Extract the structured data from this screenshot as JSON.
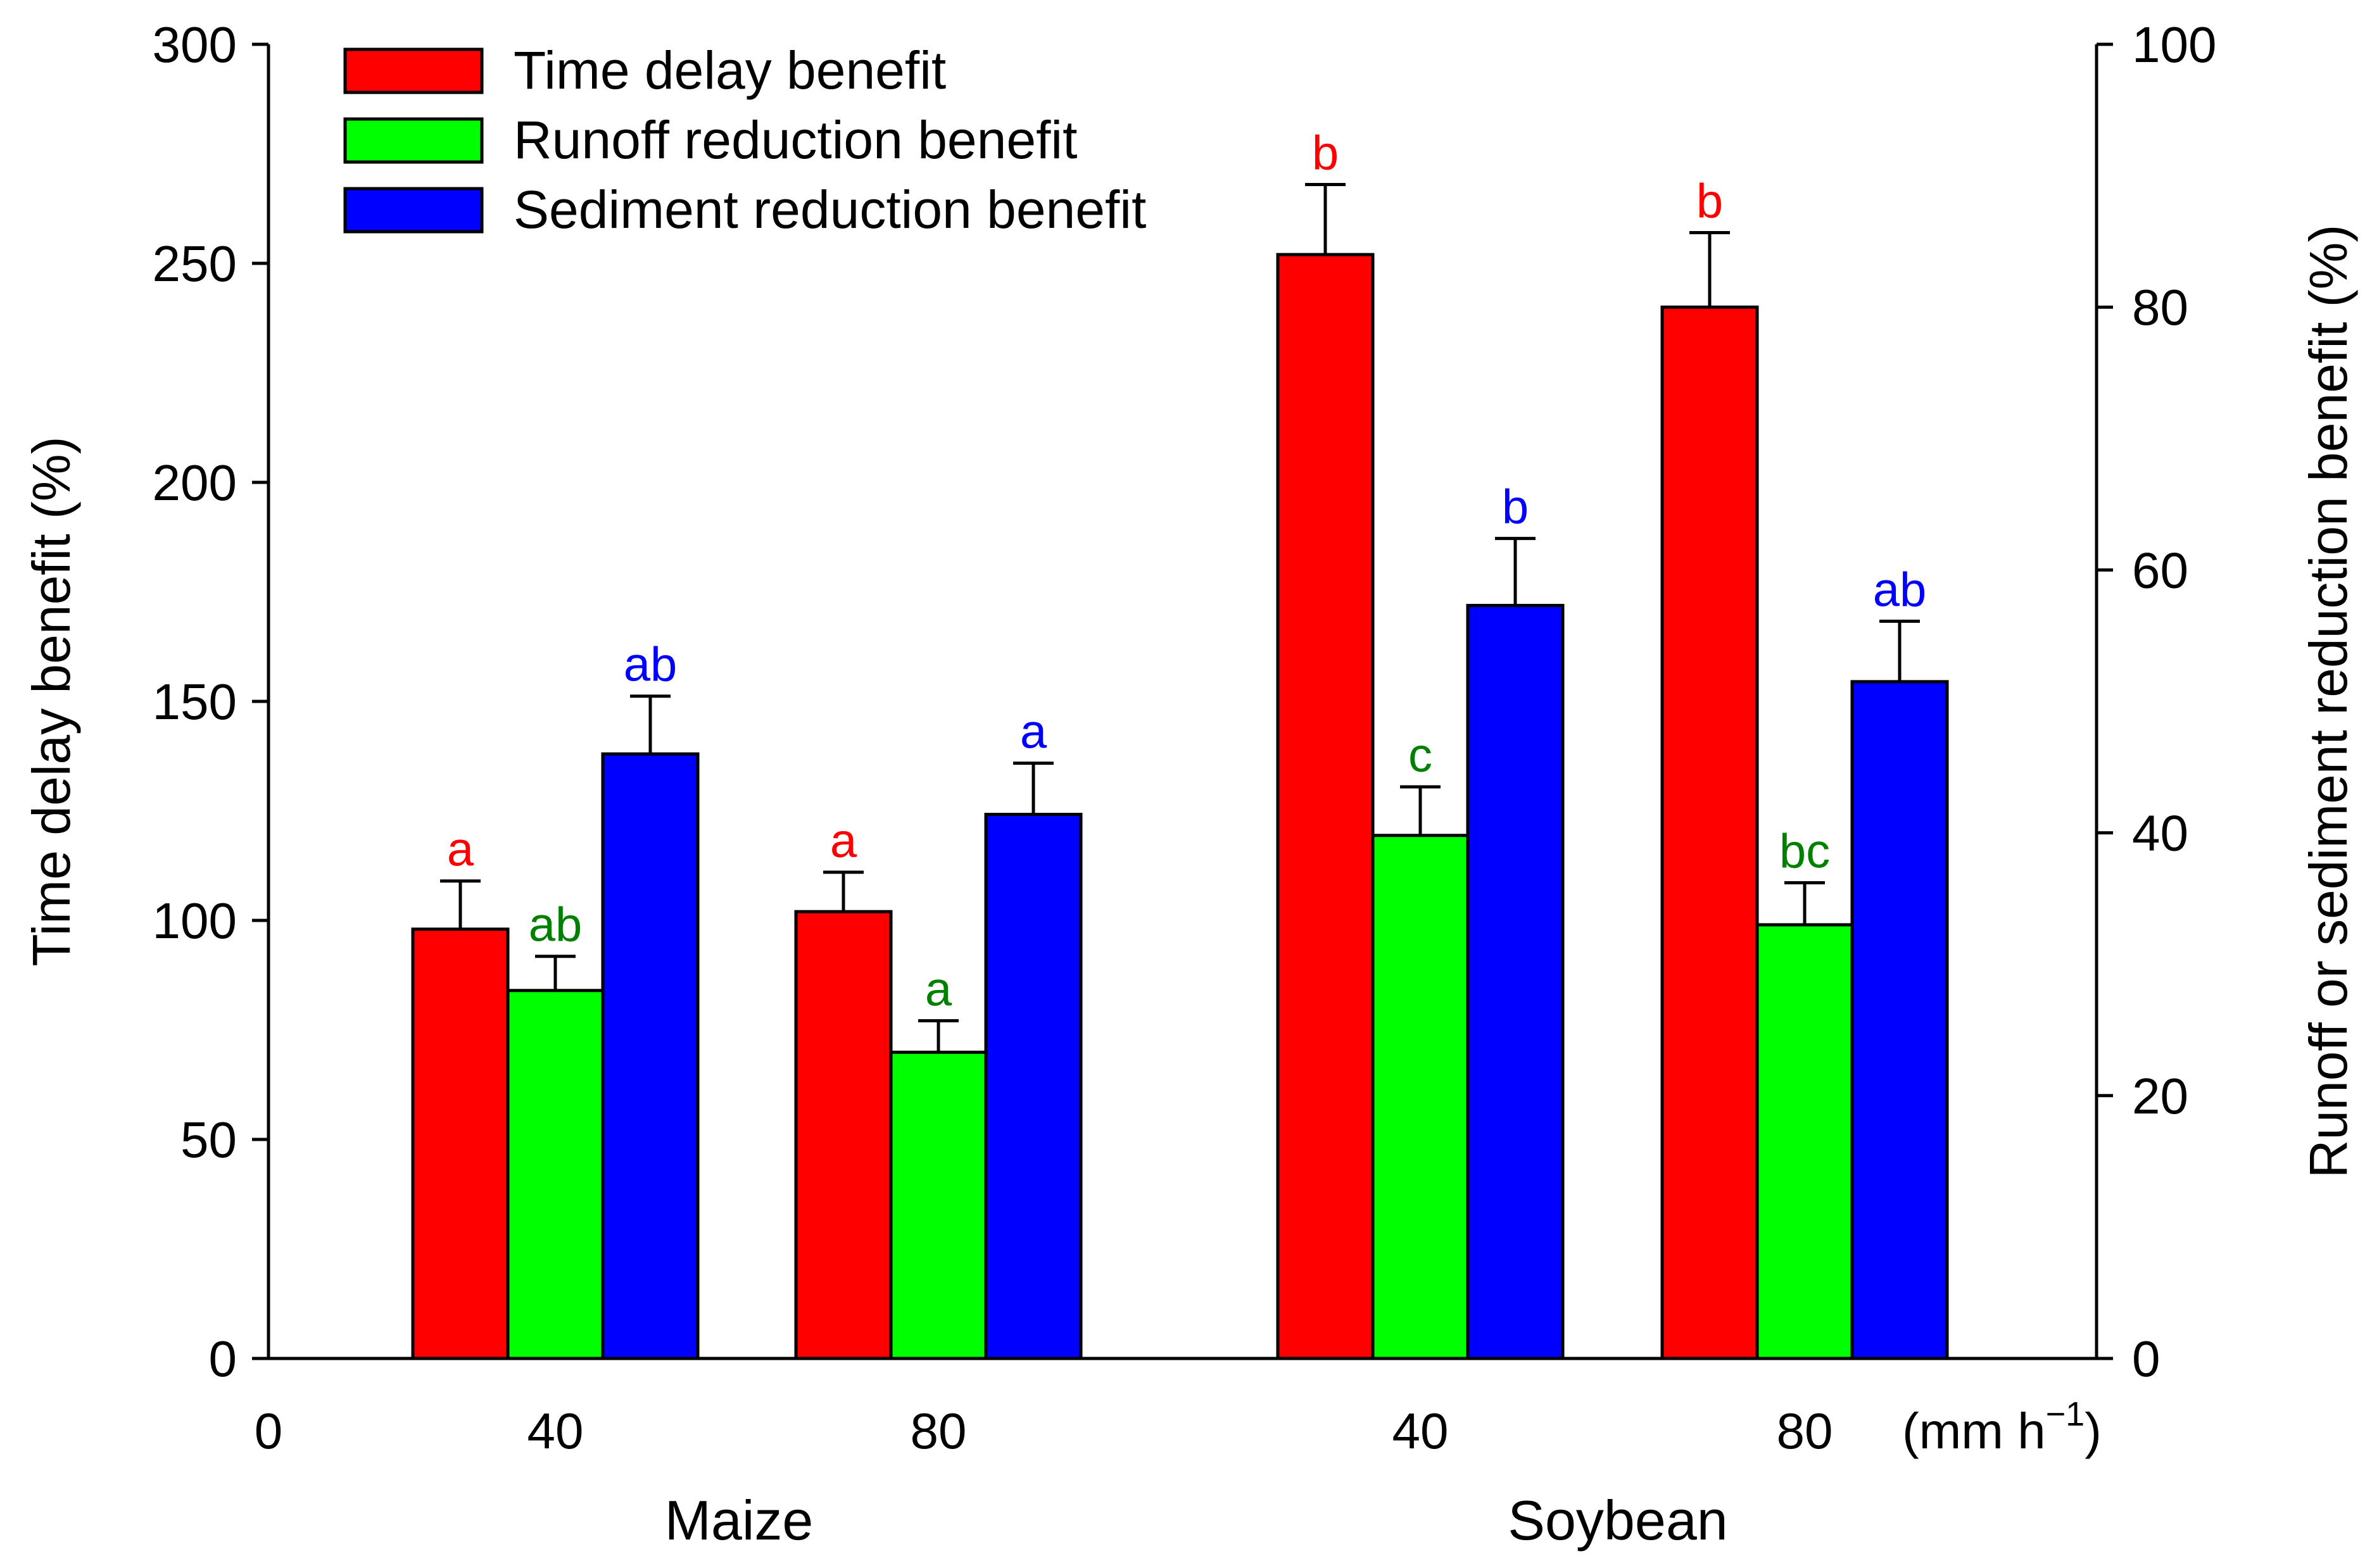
{
  "chart_data": {
    "type": "bar",
    "left_axis": {
      "label": "Time delay benefit (%)",
      "ylim": [
        0,
        300
      ],
      "ticks": [
        0,
        50,
        100,
        150,
        200,
        250,
        300
      ]
    },
    "right_axis": {
      "label": "Runoff or sediment reduction benefit (%)",
      "ylim": [
        0,
        100
      ],
      "ticks": [
        0,
        20,
        40,
        60,
        80,
        100
      ]
    },
    "x_axis": {
      "origin_label": "0",
      "unit_label": "(mm h",
      "unit_superscript": "−1",
      "unit_close": ")"
    },
    "groups": [
      {
        "name": "Maize",
        "categories": [
          "40",
          "80"
        ]
      },
      {
        "name": "Soybean",
        "categories": [
          "40",
          "80"
        ]
      }
    ],
    "series": [
      {
        "name": "Time delay benefit",
        "axis": "left",
        "color": "#ff0000",
        "label_color": "#ff0000",
        "values": [
          98,
          102,
          252,
          240
        ],
        "errors": [
          11,
          9,
          16,
          17
        ],
        "sig_labels": [
          "a",
          "a",
          "b",
          "b"
        ]
      },
      {
        "name": "Runoff reduction benefit",
        "axis": "right",
        "color": "#00ff00",
        "label_color": "#008000",
        "values": [
          28,
          23.3,
          39.8,
          33
        ],
        "errors": [
          2.6,
          2.4,
          3.7,
          3.2
        ],
        "sig_labels": [
          "ab",
          "a",
          "c",
          "bc"
        ]
      },
      {
        "name": "Sediment reduction benefit",
        "axis": "right",
        "color": "#0000ff",
        "label_color": "#0000ff",
        "values": [
          46,
          41.4,
          57.3,
          51.5
        ],
        "errors": [
          4.4,
          3.9,
          5.1,
          4.6
        ],
        "sig_labels": [
          "ab",
          "a",
          "b",
          "ab"
        ]
      }
    ],
    "legend_position": "top-left"
  }
}
